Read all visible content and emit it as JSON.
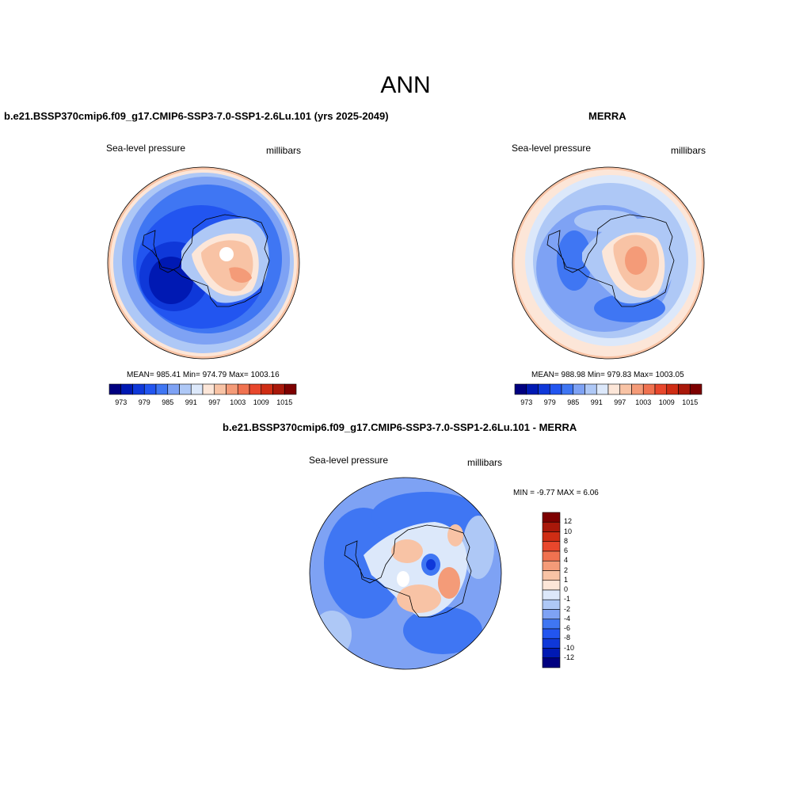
{
  "main_title": "ANN",
  "panels": [
    {
      "title": "b.e21.BSSP370cmip6.f09_g17.CMIP6-SSP3-7.0-SSP1-2.6Lu.101 (yrs 2025-2049)",
      "left_label": "Sea-level pressure",
      "right_label": "millibars",
      "stats": "MEAN= 985.41  Min= 974.79  Max= 1003.16",
      "colorbar_ticks": [
        "973",
        "979",
        "985",
        "991",
        "997",
        "1003",
        "1009",
        "1015"
      ]
    },
    {
      "title": "MERRA",
      "left_label": "Sea-level pressure",
      "right_label": "millibars",
      "stats": "MEAN= 988.98  Min= 979.83  Max= 1003.05",
      "colorbar_ticks": [
        "973",
        "979",
        "985",
        "991",
        "997",
        "1003",
        "1009",
        "1015"
      ]
    },
    {
      "title": "b.e21.BSSP370cmip6.f09_g17.CMIP6-SSP3-7.0-SSP1-2.6Lu.101 - MERRA",
      "left_label": "Sea-level pressure",
      "right_label": "millibars",
      "stats": "MIN =  -9.77 MAX =   6.06",
      "colorbar_ticks": [
        "12",
        "10",
        "8",
        "6",
        "4",
        "2",
        "1",
        "0",
        "-1",
        "-2",
        "-4",
        "-6",
        "-8",
        "-10",
        "-12"
      ]
    }
  ],
  "colors": {
    "abs_scale": [
      "#000080",
      "#0019b3",
      "#0f38d9",
      "#2255f0",
      "#3f76f3",
      "#7ea2f4",
      "#aec8f6",
      "#dce8fa",
      "#fce6d8",
      "#f8c3a5",
      "#f49b78",
      "#f07250",
      "#e8472c",
      "#cf2d14",
      "#a9180a",
      "#7d0000"
    ],
    "diff_scale": [
      "#7d0000",
      "#a9180a",
      "#cf2d14",
      "#e8472c",
      "#f07250",
      "#f49b78",
      "#f8c3a5",
      "#fce6d8",
      "#dce8fa",
      "#aec8f6",
      "#7ea2f4",
      "#3f76f3",
      "#2255f0",
      "#0f38d9",
      "#0019b3",
      "#000080"
    ]
  }
}
